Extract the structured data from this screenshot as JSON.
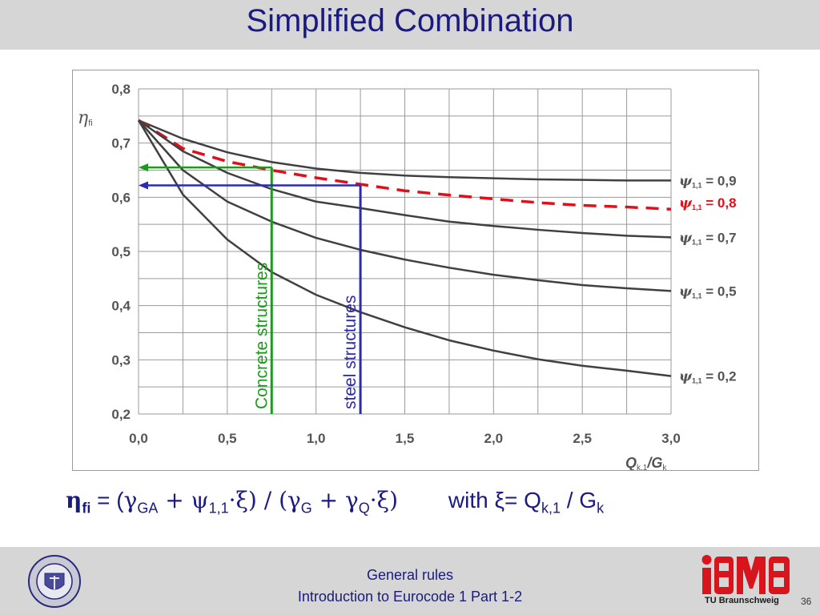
{
  "slide": {
    "title": "Simplified Combination",
    "footer_line1": "General rules",
    "footer_line2": "Introduction to Eurocode 1 Part 1-2",
    "institution": "TU Braunschweig",
    "logo_text": "iBMB",
    "page_number": "36"
  },
  "formula": {
    "eta": "η",
    "eta_sub": "fi",
    "eq_open": " = (",
    "gamma1": "γ",
    "gamma1_sub": "GA",
    "plus_psi": "  + ψ",
    "psi_sub": "1,1",
    "xi_close": "·ξ) / (",
    "gamma2": "γ",
    "gamma2_sub": "G",
    "plus_gamma": "  + γ",
    "gamma3_sub": "Q",
    "xi_end": "·ξ)",
    "with_text": "with  ξ= Q",
    "q_sub": "k,1",
    "slash_g": " / G",
    "g_sub": "k"
  },
  "colors": {
    "title_text": "#1a1a80",
    "band_gray": "#d6d6d6",
    "curve_gray": "#404040",
    "dashed_red": "#e0101a",
    "concrete_green": "#1c9a1c",
    "steel_blue": "#2a2ab4"
  },
  "chart_data": {
    "type": "line",
    "ylabel_symbol": "η",
    "ylabel_sub": "fi",
    "xlabel_main": "Q",
    "xlabel_sub": "k,1",
    "xlabel_tail": "/G",
    "xlabel_tail_sub": "k",
    "xlim": [
      0,
      3.0
    ],
    "ylim": [
      0.2,
      0.8
    ],
    "grid": true,
    "x_ticks": [
      "0,0",
      "0,5",
      "1,0",
      "1,5",
      "2,0",
      "2,5",
      "3,0"
    ],
    "y_ticks": [
      "0,2",
      "0,3",
      "0,4",
      "0,5",
      "0,6",
      "0,7",
      "0,8"
    ],
    "x": [
      0,
      0.25,
      0.5,
      0.75,
      1.0,
      1.25,
      1.5,
      1.75,
      2.0,
      2.25,
      2.5,
      2.75,
      3.0
    ],
    "series": [
      {
        "name_prefix": "ψ",
        "name_sub": "1,1",
        "name_value": " = 0,9",
        "style": "solid",
        "color": "#404040",
        "values": [
          0.742,
          0.708,
          0.683,
          0.665,
          0.653,
          0.645,
          0.64,
          0.637,
          0.635,
          0.633,
          0.632,
          0.631,
          0.631
        ]
      },
      {
        "name_prefix": "ψ",
        "name_sub": "1,1",
        "name_value": " = 0,8",
        "style": "dashed",
        "color": "#e0101a",
        "values": [
          0.742,
          0.69,
          0.666,
          0.65,
          0.636,
          0.624,
          0.612,
          0.604,
          0.597,
          0.59,
          0.585,
          0.582,
          0.578
        ]
      },
      {
        "name_prefix": "ψ",
        "name_sub": "1,1",
        "name_value": " = 0,7",
        "style": "solid",
        "color": "#404040",
        "values": [
          0.742,
          0.685,
          0.645,
          0.615,
          0.592,
          0.58,
          0.567,
          0.555,
          0.547,
          0.54,
          0.534,
          0.529,
          0.526
        ]
      },
      {
        "name_prefix": "ψ",
        "name_sub": "1,1",
        "name_value": " = 0,5",
        "style": "solid",
        "color": "#404040",
        "values": [
          0.742,
          0.65,
          0.592,
          0.555,
          0.525,
          0.503,
          0.485,
          0.47,
          0.457,
          0.447,
          0.438,
          0.432,
          0.427
        ]
      },
      {
        "name_prefix": "ψ",
        "name_sub": "1,1",
        "name_value": " = 0,2",
        "style": "solid",
        "color": "#404040",
        "values": [
          0.742,
          0.605,
          0.522,
          0.462,
          0.42,
          0.388,
          0.36,
          0.336,
          0.317,
          0.301,
          0.289,
          0.28,
          0.27
        ]
      }
    ],
    "annotations": [
      {
        "text": "Concrete structures",
        "x": 0.75,
        "y": 0.655,
        "color": "#1c9a1c"
      },
      {
        "text": "steel structures",
        "x": 1.25,
        "y": 0.622,
        "color": "#2a2ab4"
      }
    ]
  }
}
